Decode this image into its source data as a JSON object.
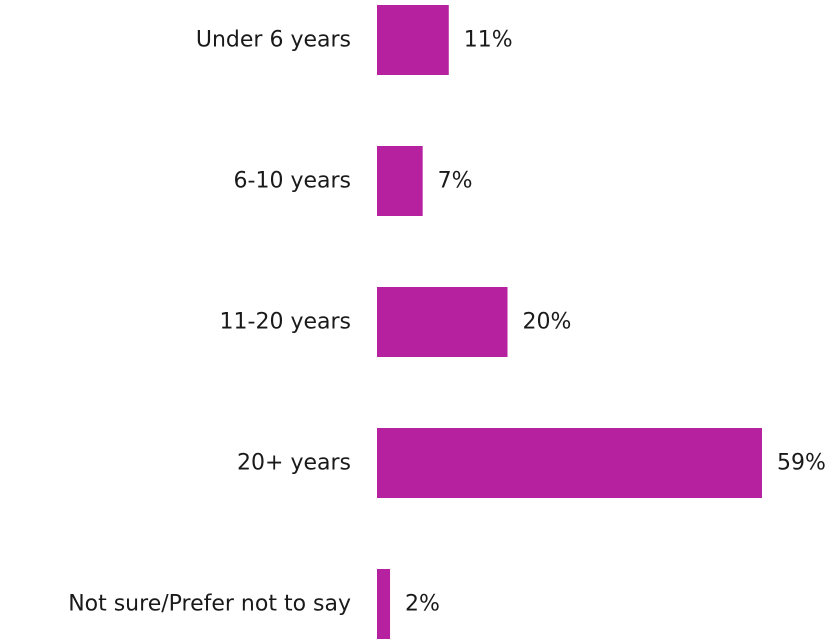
{
  "chart_data": {
    "type": "bar",
    "orientation": "horizontal",
    "categories": [
      "Under 6 years",
      "6-10 years",
      "11-20 years",
      "20+ years",
      "Not sure/Prefer not to say"
    ],
    "values": [
      11,
      7,
      20,
      59,
      2
    ],
    "value_labels": [
      "11%",
      "7%",
      "20%",
      "59%",
      "2%"
    ],
    "unit": "%",
    "bar_color": "#b5219f",
    "title": "",
    "xlabel": "",
    "ylabel": "",
    "grid": false,
    "legend": "none"
  }
}
